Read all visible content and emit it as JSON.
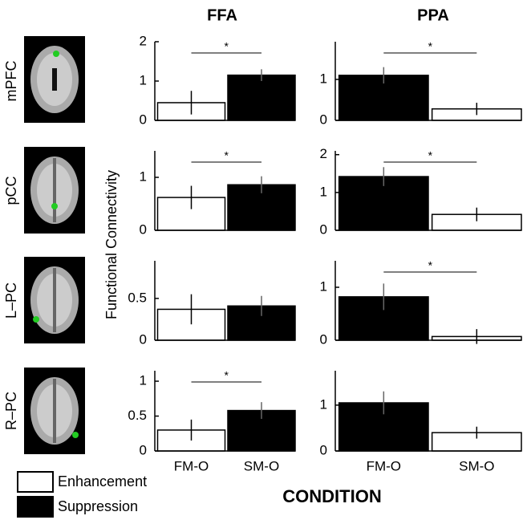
{
  "figure": {
    "columns": [
      "FFA",
      "PPA"
    ],
    "rows": [
      "mPFC",
      "pCC",
      "L–PC",
      "R–PC"
    ],
    "ylabel": "Functional Connectivity",
    "xlabel": "CONDITION",
    "legend": [
      {
        "name": "Enhancement",
        "color": "#ffffff"
      },
      {
        "name": "Suppression",
        "color": "#000000"
      }
    ]
  },
  "chart_data": [
    {
      "type": "bar",
      "values": [
        0.45,
        1.15
      ],
      "errors": [
        0.3,
        0.15
      ],
      "colors": [
        "#ffffff",
        "#000000"
      ],
      "ylim": [
        0,
        2
      ],
      "yticks": [
        0,
        1,
        2
      ],
      "significance": "*"
    },
    {
      "type": "bar",
      "values": [
        1.1,
        0.28
      ],
      "errors": [
        0.2,
        0.15
      ],
      "colors": [
        "#000000",
        "#ffffff"
      ],
      "ylim": [
        0,
        1.92
      ],
      "yticks": [
        0,
        1
      ],
      "significance": "*"
    },
    {
      "type": "bar",
      "values": [
        0.62,
        0.86
      ],
      "errors": [
        0.22,
        0.16
      ],
      "colors": [
        "#ffffff",
        "#000000"
      ],
      "ylim": [
        0,
        1.5
      ],
      "yticks": [
        0,
        1
      ],
      "significance": "*"
    },
    {
      "type": "bar",
      "values": [
        1.42,
        0.42
      ],
      "errors": [
        0.25,
        0.18
      ],
      "colors": [
        "#000000",
        "#ffffff"
      ],
      "ylim": [
        0,
        2.1
      ],
      "yticks": [
        0,
        1,
        2
      ],
      "significance": "*"
    },
    {
      "type": "bar",
      "values": [
        0.37,
        0.41
      ],
      "errors": [
        0.18,
        0.12
      ],
      "colors": [
        "#ffffff",
        "#000000"
      ],
      "ylim": [
        0,
        0.95
      ],
      "yticks": [
        0,
        0.5
      ]
    },
    {
      "type": "bar",
      "values": [
        0.82,
        0.07
      ],
      "errors": [
        0.25,
        0.14
      ],
      "colors": [
        "#000000",
        "#ffffff"
      ],
      "ylim": [
        0,
        1.5
      ],
      "yticks": [
        0,
        1
      ],
      "significance": "*"
    },
    {
      "type": "bar",
      "categories": [
        "FM-O",
        "SM-O"
      ],
      "values": [
        0.3,
        0.58
      ],
      "errors": [
        0.15,
        0.12
      ],
      "colors": [
        "#ffffff",
        "#000000"
      ],
      "ylim": [
        0,
        1.15
      ],
      "yticks": [
        0,
        0.5,
        1
      ],
      "significance": "*"
    },
    {
      "type": "bar",
      "categories": [
        "FM-O",
        "SM-O"
      ],
      "values": [
        1.05,
        0.4
      ],
      "errors": [
        0.25,
        0.13
      ],
      "colors": [
        "#000000",
        "#ffffff"
      ],
      "ylim": [
        0,
        1.75
      ],
      "yticks": [
        0,
        1
      ]
    }
  ]
}
